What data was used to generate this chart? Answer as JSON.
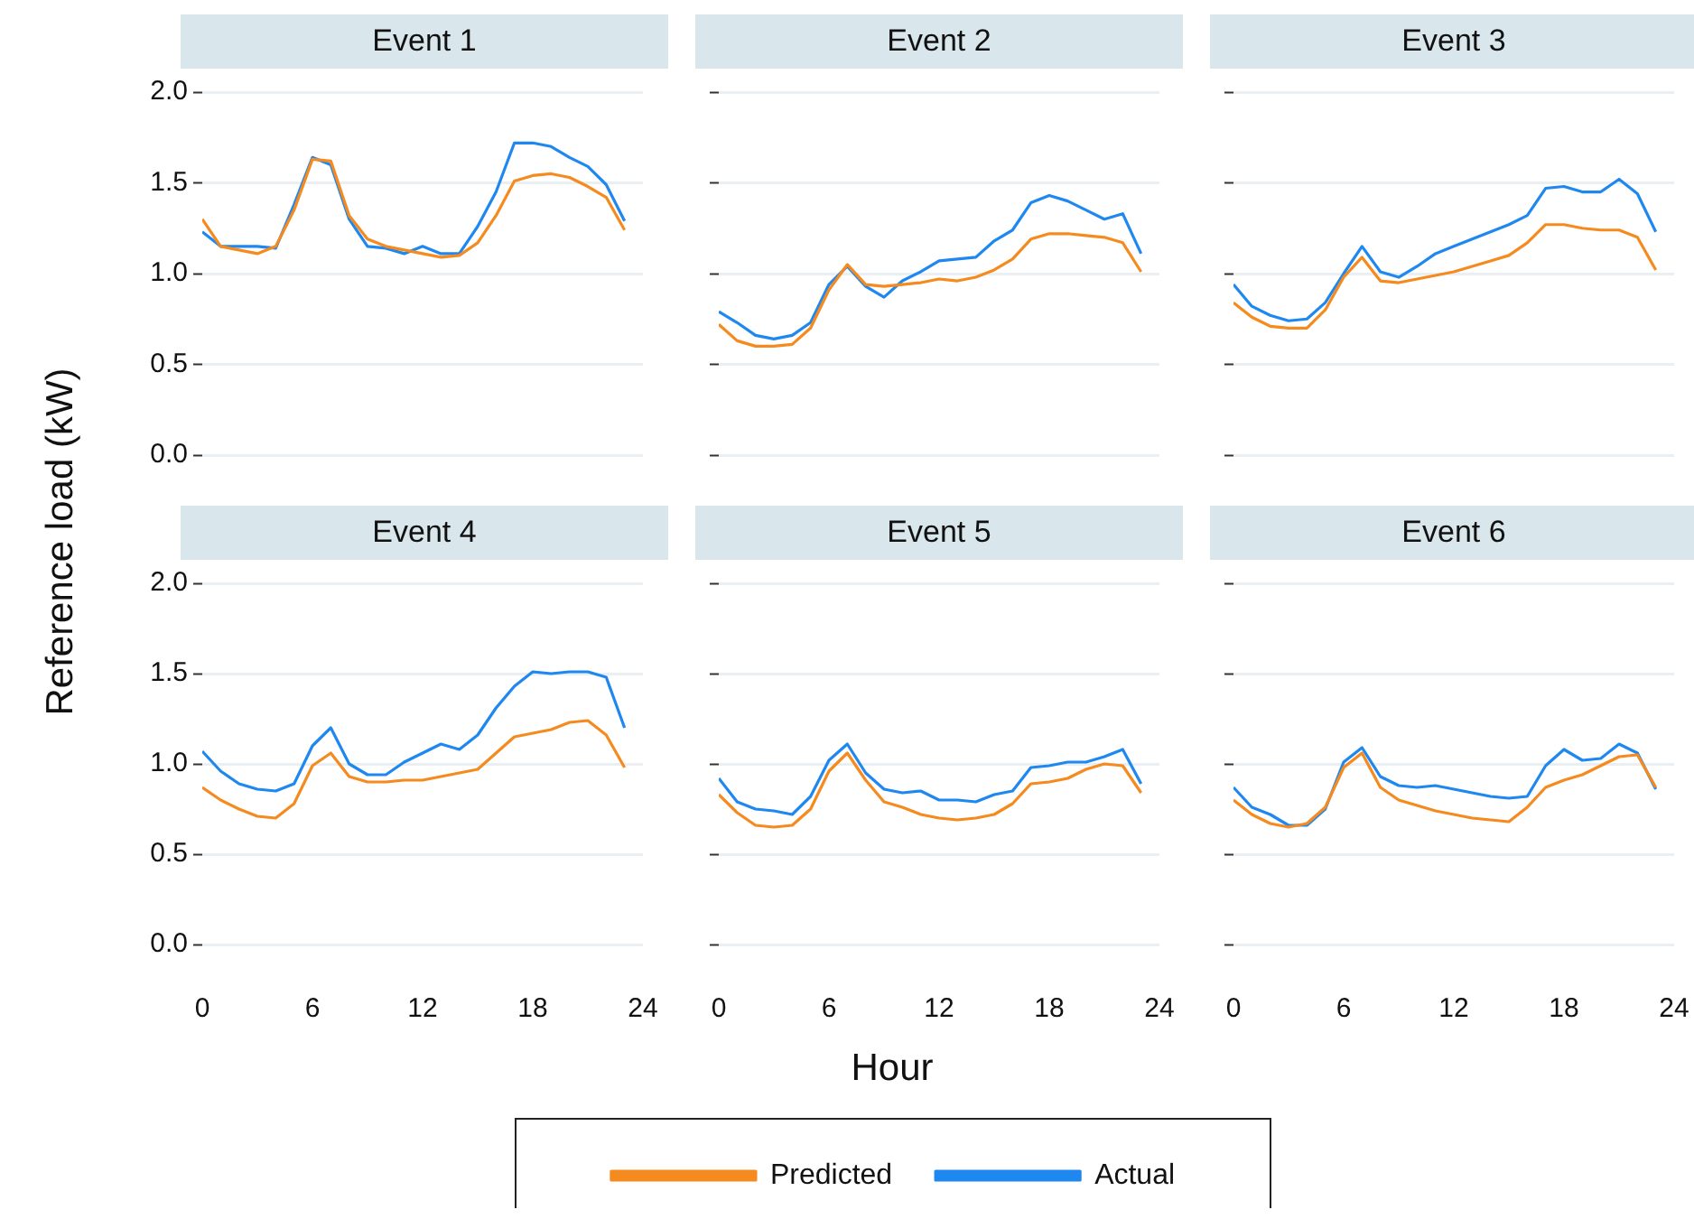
{
  "chart_data": [
    {
      "type": "line",
      "title": "Event 1",
      "ylabel": "Reference load (kW)",
      "x": [
        0,
        1,
        2,
        3,
        4,
        5,
        6,
        7,
        8,
        9,
        10,
        11,
        12,
        13,
        14,
        15,
        16,
        17,
        18,
        19,
        20,
        21,
        22,
        23
      ],
      "xlim": [
        0,
        24
      ],
      "xticks": [
        0,
        6,
        12,
        18,
        24
      ],
      "ylim": [
        0,
        2
      ],
      "yticks": [
        {
          "value": 0,
          "label": "0.0"
        },
        {
          "value": 0.5,
          "label": "0.5"
        },
        {
          "value": 1,
          "label": "1.0"
        },
        {
          "value": 1.5,
          "label": "1.5"
        },
        {
          "value": 2,
          "label": "2.0"
        }
      ],
      "grid": "y",
      "tick_labels": "y",
      "series": [
        {
          "color": "#f58a1f",
          "values": [
            1.3,
            1.15,
            1.13,
            1.11,
            1.15,
            1.35,
            1.63,
            1.62,
            1.32,
            1.19,
            1.15,
            1.13,
            1.11,
            1.09,
            1.1,
            1.17,
            1.32,
            1.51,
            1.54,
            1.55,
            1.53,
            1.48,
            1.42,
            1.24
          ]
        },
        {
          "color": "#1f88f0",
          "values": [
            1.23,
            1.15,
            1.15,
            1.15,
            1.14,
            1.38,
            1.64,
            1.6,
            1.3,
            1.15,
            1.14,
            1.11,
            1.15,
            1.11,
            1.11,
            1.26,
            1.45,
            1.72,
            1.72,
            1.7,
            1.64,
            1.59,
            1.49,
            1.29
          ]
        }
      ]
    },
    {
      "type": "line",
      "title": "Event 2",
      "x": [
        0,
        1,
        2,
        3,
        4,
        5,
        6,
        7,
        8,
        9,
        10,
        11,
        12,
        13,
        14,
        15,
        16,
        17,
        18,
        19,
        20,
        21,
        22,
        23
      ],
      "xlim": [
        0,
        24
      ],
      "xticks": [
        0,
        6,
        12,
        18,
        24
      ],
      "ylim": [
        0,
        2
      ],
      "yticks": [
        0,
        0.5,
        1,
        1.5,
        2
      ],
      "grid": "y",
      "tick_labels": false,
      "series": [
        {
          "color": "#f58a1f",
          "values": [
            0.72,
            0.63,
            0.6,
            0.6,
            0.61,
            0.7,
            0.91,
            1.05,
            0.94,
            0.93,
            0.94,
            0.95,
            0.97,
            0.96,
            0.98,
            1.02,
            1.08,
            1.19,
            1.22,
            1.22,
            1.21,
            1.2,
            1.17,
            1.01
          ]
        },
        {
          "color": "#1f88f0",
          "values": [
            0.79,
            0.73,
            0.66,
            0.64,
            0.66,
            0.73,
            0.94,
            1.04,
            0.93,
            0.87,
            0.96,
            1.01,
            1.07,
            1.08,
            1.09,
            1.18,
            1.24,
            1.39,
            1.43,
            1.4,
            1.35,
            1.3,
            1.33,
            1.11
          ]
        }
      ]
    },
    {
      "type": "line",
      "title": "Event 3",
      "x": [
        0,
        1,
        2,
        3,
        4,
        5,
        6,
        7,
        8,
        9,
        10,
        11,
        12,
        13,
        14,
        15,
        16,
        17,
        18,
        19,
        20,
        21,
        22,
        23
      ],
      "xlim": [
        0,
        24
      ],
      "xticks": [
        0,
        6,
        12,
        18,
        24
      ],
      "ylim": [
        0,
        2
      ],
      "yticks": [
        0,
        0.5,
        1,
        1.5,
        2
      ],
      "grid": "y",
      "tick_labels": false,
      "series": [
        {
          "color": "#f58a1f",
          "values": [
            0.84,
            0.76,
            0.71,
            0.7,
            0.7,
            0.8,
            0.98,
            1.09,
            0.96,
            0.95,
            0.97,
            0.99,
            1.01,
            1.04,
            1.07,
            1.1,
            1.17,
            1.27,
            1.27,
            1.25,
            1.24,
            1.24,
            1.2,
            1.02
          ]
        },
        {
          "color": "#1f88f0",
          "values": [
            0.94,
            0.82,
            0.77,
            0.74,
            0.75,
            0.84,
            1.0,
            1.15,
            1.01,
            0.98,
            1.04,
            1.11,
            1.15,
            1.19,
            1.23,
            1.27,
            1.32,
            1.47,
            1.48,
            1.45,
            1.45,
            1.52,
            1.44,
            1.23
          ]
        }
      ]
    },
    {
      "type": "line",
      "title": "Event 4",
      "x": [
        0,
        1,
        2,
        3,
        4,
        5,
        6,
        7,
        8,
        9,
        10,
        11,
        12,
        13,
        14,
        15,
        16,
        17,
        18,
        19,
        20,
        21,
        22,
        23
      ],
      "xlim": [
        0,
        24
      ],
      "xticks": [
        0,
        6,
        12,
        18,
        24
      ],
      "ylim": [
        0,
        2
      ],
      "yticks": [
        {
          "value": 0,
          "label": "0.0"
        },
        {
          "value": 0.5,
          "label": "0.5"
        },
        {
          "value": 1,
          "label": "1.0"
        },
        {
          "value": 1.5,
          "label": "1.5"
        },
        {
          "value": 2,
          "label": "2.0"
        }
      ],
      "grid": "y",
      "series": [
        {
          "color": "#f58a1f",
          "values": [
            0.87,
            0.8,
            0.75,
            0.71,
            0.7,
            0.78,
            0.99,
            1.06,
            0.93,
            0.9,
            0.9,
            0.91,
            0.91,
            0.93,
            0.95,
            0.97,
            1.06,
            1.15,
            1.17,
            1.19,
            1.23,
            1.24,
            1.16,
            0.98
          ]
        },
        {
          "color": "#1f88f0",
          "values": [
            1.07,
            0.96,
            0.89,
            0.86,
            0.85,
            0.89,
            1.1,
            1.2,
            1.0,
            0.94,
            0.94,
            1.01,
            1.06,
            1.11,
            1.08,
            1.16,
            1.31,
            1.43,
            1.51,
            1.5,
            1.51,
            1.51,
            1.48,
            1.2
          ]
        }
      ]
    },
    {
      "type": "line",
      "title": "Event 5",
      "xlabel": "Hour",
      "legend": "bottom",
      "x": [
        0,
        1,
        2,
        3,
        4,
        5,
        6,
        7,
        8,
        9,
        10,
        11,
        12,
        13,
        14,
        15,
        16,
        17,
        18,
        19,
        20,
        21,
        22,
        23
      ],
      "xlim": [
        0,
        24
      ],
      "xticks": [
        0,
        6,
        12,
        18,
        24
      ],
      "ylim": [
        0,
        2
      ],
      "yticks": [
        0,
        0.5,
        1,
        1.5,
        2
      ],
      "grid": "y",
      "tick_labels": "x",
      "series": [
        {
          "name": "Predicted",
          "color": "#f58a1f",
          "values": [
            0.83,
            0.73,
            0.66,
            0.65,
            0.66,
            0.75,
            0.96,
            1.06,
            0.91,
            0.79,
            0.76,
            0.72,
            0.7,
            0.69,
            0.7,
            0.72,
            0.78,
            0.89,
            0.9,
            0.92,
            0.97,
            1.0,
            0.99,
            0.84
          ]
        },
        {
          "name": "Actual",
          "color": "#1f88f0",
          "values": [
            0.92,
            0.79,
            0.75,
            0.74,
            0.72,
            0.82,
            1.02,
            1.11,
            0.95,
            0.86,
            0.84,
            0.85,
            0.8,
            0.8,
            0.79,
            0.83,
            0.85,
            0.98,
            0.99,
            1.01,
            1.01,
            1.04,
            1.08,
            0.89
          ]
        }
      ]
    },
    {
      "type": "line",
      "title": "Event 6",
      "x": [
        0,
        1,
        2,
        3,
        4,
        5,
        6,
        7,
        8,
        9,
        10,
        11,
        12,
        13,
        14,
        15,
        16,
        17,
        18,
        19,
        20,
        21,
        22,
        23
      ],
      "xlim": [
        0,
        24
      ],
      "xticks": [
        0,
        6,
        12,
        18,
        24
      ],
      "ylim": [
        0,
        2
      ],
      "yticks": [
        0,
        0.5,
        1,
        1.5,
        2
      ],
      "grid": "y",
      "tick_labels": "x",
      "series": [
        {
          "color": "#f58a1f",
          "values": [
            0.8,
            0.72,
            0.67,
            0.65,
            0.67,
            0.76,
            0.98,
            1.06,
            0.87,
            0.8,
            0.77,
            0.74,
            0.72,
            0.7,
            0.69,
            0.68,
            0.76,
            0.87,
            0.91,
            0.94,
            0.99,
            1.04,
            1.05,
            0.87
          ]
        },
        {
          "color": "#1f88f0",
          "values": [
            0.87,
            0.76,
            0.72,
            0.66,
            0.66,
            0.75,
            1.01,
            1.09,
            0.93,
            0.88,
            0.87,
            0.88,
            0.86,
            0.84,
            0.82,
            0.81,
            0.82,
            0.99,
            1.08,
            1.02,
            1.03,
            1.11,
            1.06,
            0.86
          ]
        }
      ]
    }
  ]
}
